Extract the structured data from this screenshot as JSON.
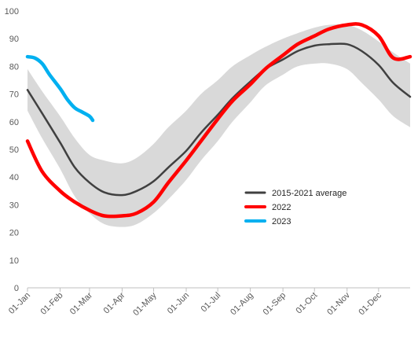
{
  "chart_data": {
    "type": "line",
    "title": "",
    "xlabel": "",
    "ylabel": "",
    "ylim": [
      0,
      100
    ],
    "yticks": [
      0,
      10,
      20,
      30,
      40,
      50,
      60,
      70,
      80,
      90,
      100
    ],
    "xticks": [
      "01-Jan",
      "01-Feb",
      "01-Mar",
      "01-Apr",
      "01-May",
      "01-Jun",
      "01-Jul",
      "01-Aug",
      "01-Sep",
      "01-Oct",
      "01-Nov",
      "01-Dec"
    ],
    "grid": false,
    "legend_position": "center-right",
    "band": {
      "name": "range",
      "color": "#d9d9d9",
      "x": [
        "01-Jan",
        "15-Jan",
        "01-Feb",
        "15-Feb",
        "01-Mar",
        "15-Mar",
        "01-Apr",
        "15-Apr",
        "01-May",
        "15-May",
        "01-Jun",
        "15-Jun",
        "01-Jul",
        "15-Jul",
        "01-Aug",
        "15-Aug",
        "01-Sep",
        "15-Sep",
        "01-Oct",
        "15-Oct",
        "01-Nov",
        "15-Nov",
        "01-Dec",
        "15-Dec",
        "31-Dec"
      ],
      "upper": [
        79,
        71,
        62,
        54,
        48,
        46,
        45,
        47,
        52,
        58,
        64,
        70,
        75,
        80,
        84,
        87,
        90,
        92,
        94,
        95,
        95,
        93,
        89,
        85,
        81
      ],
      "lower": [
        64,
        54,
        43,
        33,
        27,
        23,
        22,
        23,
        27,
        32,
        39,
        46,
        53,
        60,
        67,
        73,
        77,
        80,
        81,
        81,
        79,
        74,
        68,
        62,
        58
      ]
    },
    "series": [
      {
        "name": "2015-2021 average",
        "color": "#404040",
        "x": [
          "01-Jan",
          "15-Jan",
          "01-Feb",
          "15-Feb",
          "01-Mar",
          "15-Mar",
          "01-Apr",
          "15-Apr",
          "01-May",
          "15-May",
          "01-Jun",
          "15-Jun",
          "01-Jul",
          "15-Jul",
          "01-Aug",
          "15-Aug",
          "01-Sep",
          "15-Sep",
          "01-Oct",
          "15-Oct",
          "01-Nov",
          "15-Nov",
          "01-Dec",
          "15-Dec",
          "31-Dec"
        ],
        "values": [
          71.5,
          63,
          52.5,
          43.5,
          38,
          34.5,
          33.5,
          35,
          38.5,
          43.5,
          49.5,
          56,
          62.5,
          68.5,
          74.5,
          79,
          82.5,
          85.5,
          87.5,
          88,
          88,
          85.5,
          80.5,
          74,
          69
        ]
      },
      {
        "name": "2022",
        "color": "#ff0000",
        "x": [
          "01-Jan",
          "15-Jan",
          "01-Feb",
          "15-Feb",
          "01-Mar",
          "15-Mar",
          "01-Apr",
          "15-Apr",
          "01-May",
          "15-May",
          "01-Jun",
          "15-Jun",
          "01-Jul",
          "15-Jul",
          "01-Aug",
          "15-Aug",
          "01-Sep",
          "15-Sep",
          "01-Oct",
          "15-Oct",
          "01-Nov",
          "15-Nov",
          "01-Dec",
          "15-Dec",
          "31-Dec"
        ],
        "values": [
          53,
          42,
          35,
          31,
          28,
          26,
          26,
          27,
          31,
          38,
          46,
          53,
          61,
          67.5,
          73.5,
          79,
          84,
          88,
          91,
          93.5,
          95,
          95,
          91,
          83,
          83.5
        ]
      },
      {
        "name": "2023",
        "color": "#00b0f0",
        "x": [
          "01-Jan",
          "08-Jan",
          "15-Jan",
          "22-Jan",
          "01-Feb",
          "08-Feb",
          "15-Feb",
          "22-Feb",
          "01-Mar",
          "04-Mar"
        ],
        "values": [
          83.5,
          83,
          81,
          77,
          72,
          68,
          65,
          63.5,
          62,
          60.5
        ]
      }
    ]
  }
}
